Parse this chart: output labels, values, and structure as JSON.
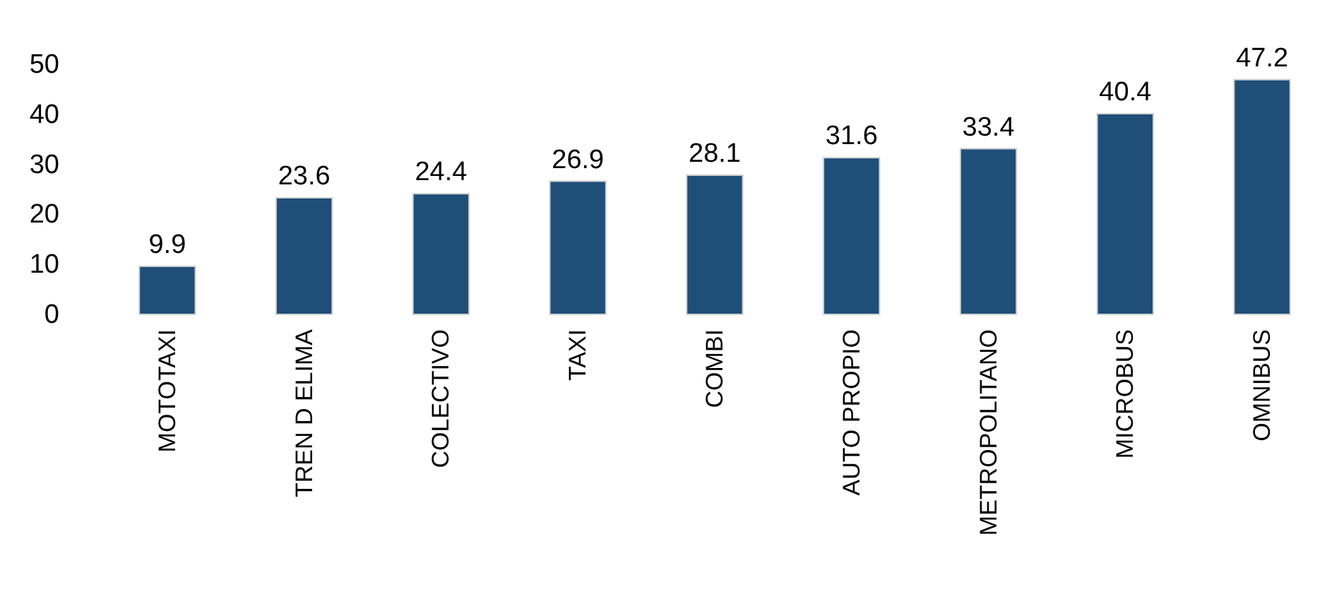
{
  "chart_data": {
    "type": "bar",
    "categories": [
      "MOTOTAXI",
      "TREN D ELIMA",
      "COLECTIVO",
      "TAXI",
      "COMBI",
      "AUTO PROPIO",
      "METROPOLITANO",
      "MICROBUS",
      "OMNIBUS"
    ],
    "values": [
      9.9,
      23.6,
      24.4,
      26.9,
      28.1,
      31.6,
      33.4,
      40.4,
      47.2
    ],
    "color": "#1f4e79",
    "ylim": [
      0,
      50
    ],
    "yticks": [
      0,
      10,
      20,
      30,
      40,
      50
    ],
    "grid": false,
    "data_labels": true
  }
}
